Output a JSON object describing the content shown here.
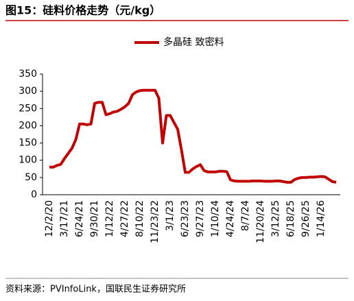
{
  "chart_data": {
    "type": "line",
    "title": "图15：硅料价格走势（元/kg）",
    "source": "资料来源：PVInfoLink，国联民生证券研究所",
    "categories": [
      "12/2/20",
      null,
      null,
      null,
      "3/17/21",
      null,
      null,
      null,
      "6/24/21",
      null,
      null,
      null,
      "9/30/21",
      null,
      null,
      null,
      "1/12/22",
      null,
      null,
      null,
      "4/27/22",
      null,
      null,
      null,
      "8/10/22",
      null,
      null,
      null,
      "11/23/22",
      null,
      null,
      null,
      "3/1/23",
      null,
      null,
      null,
      "6/23/23",
      null,
      null,
      null,
      "9/27/23",
      null,
      null,
      null,
      "1/10/24",
      null,
      null,
      null,
      "4/24/24",
      null,
      null,
      null,
      "8/7/24",
      null,
      null,
      null,
      "11/20/24",
      null,
      null,
      null,
      "3/12/25",
      null,
      null,
      null,
      "6/18/25",
      null,
      null,
      null,
      "9/26/25",
      null,
      null,
      null,
      "1/14/26",
      null,
      null,
      null,
      null
    ],
    "series": [
      {
        "name": "多晶硅 致密料",
        "color": "#c00000",
        "values": [
          80,
          80,
          85,
          88,
          105,
          120,
          135,
          160,
          205,
          205,
          203,
          205,
          265,
          268,
          268,
          232,
          235,
          240,
          242,
          248,
          255,
          265,
          290,
          298,
          302,
          303,
          303,
          303,
          303,
          280,
          150,
          230,
          230,
          210,
          190,
          130,
          65,
          65,
          75,
          82,
          87,
          70,
          66,
          66,
          66,
          68,
          68,
          67,
          43,
          40,
          39,
          39,
          39,
          39,
          40,
          40,
          40,
          39,
          39,
          39,
          40,
          40,
          38,
          36,
          36,
          44,
          48,
          50,
          50,
          51,
          51,
          52,
          53,
          52,
          45,
          38,
          36
        ]
      }
    ],
    "ylim": [
      0,
      350
    ],
    "yticks": [
      0,
      50,
      100,
      150,
      200,
      250,
      300,
      350
    ],
    "legend": "top"
  }
}
